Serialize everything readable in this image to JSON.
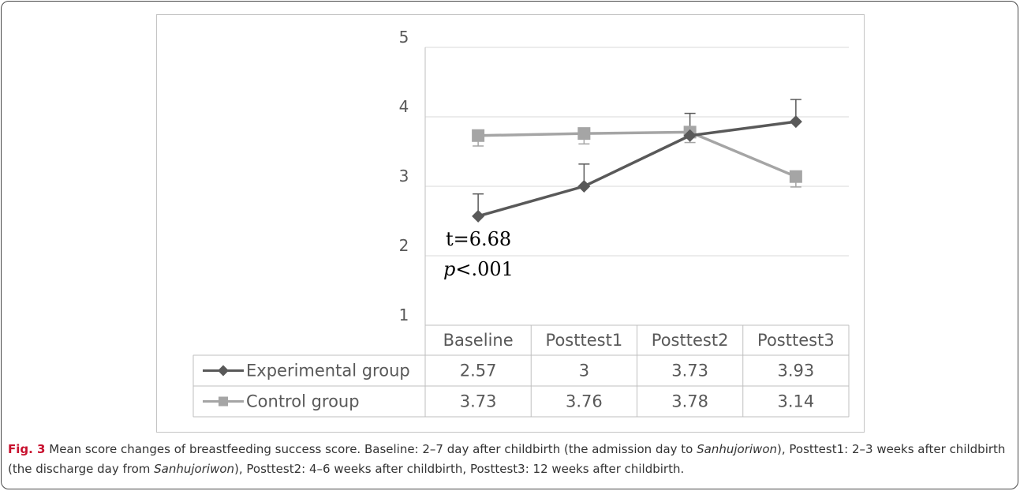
{
  "colors": {
    "experimental": "#595959",
    "control": "#a5a5a5",
    "gridline": "#d9d9d9",
    "axis_text": "#595959",
    "caption_label": "#c8102e"
  },
  "chart_data": {
    "type": "line",
    "categories": [
      "Baseline",
      "Posttest1",
      "Posttest2",
      "Posttest3"
    ],
    "series": [
      {
        "name": "Experimental group",
        "marker": "diamond",
        "values": [
          2.57,
          3,
          3.73,
          3.93
        ],
        "labels": [
          "2.57",
          "3",
          "3.73",
          "3.93"
        ],
        "error_upper": [
          2.89,
          3.32,
          4.05,
          4.25
        ]
      },
      {
        "name": "Control group",
        "marker": "square",
        "values": [
          3.73,
          3.76,
          3.78,
          3.14
        ],
        "labels": [
          "3.73",
          "3.76",
          "3.78",
          "3.14"
        ],
        "error_lower": [
          3.58,
          3.61,
          3.63,
          2.99
        ]
      }
    ],
    "y_ticks": [
      "1",
      "2",
      "3",
      "4",
      "5"
    ],
    "ylim": [
      1,
      5
    ],
    "grid": true,
    "legend": "data-table",
    "annotation": {
      "line1": "t=6.68",
      "line2_italic": "p",
      "line2_rest": "<.001"
    }
  },
  "caption": {
    "label": "Fig. 3",
    "seg1": " Mean score changes of breastfeeding success score. Baseline: 2–7 day after childbirth (the admission day to ",
    "term1": "Sanhujoriwon",
    "seg2": "), Posttest1: 2–3 weeks after childbirth (the discharge day from ",
    "term2": "Sanhujoriwon",
    "seg3": "), Posttest2: 4–6 weeks after childbirth, Posttest3: 12 weeks after childbirth."
  }
}
